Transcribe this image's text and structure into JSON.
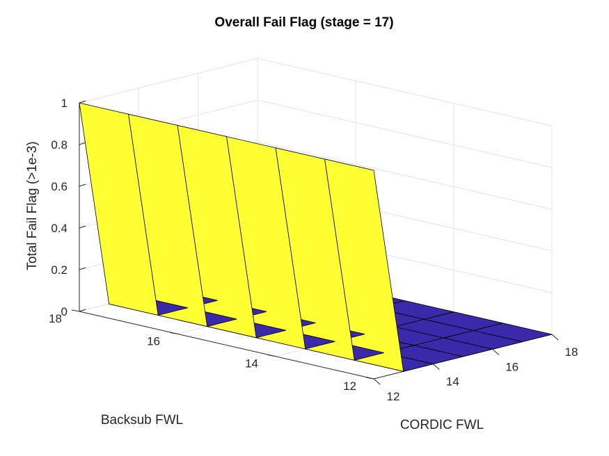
{
  "chart_data": {
    "type": "surface",
    "title": "Overall Fail Flag (stage = 17)",
    "xlabel": "CORDIC FWL",
    "ylabel": "Backsub FWL",
    "zlabel": "Total Fail Flag (>1e-3)",
    "x": [
      12,
      13,
      14,
      15,
      16,
      17,
      18
    ],
    "y": [
      12,
      13,
      14,
      15,
      16,
      17,
      18
    ],
    "xlim": [
      12,
      18
    ],
    "ylim": [
      12,
      18
    ],
    "zlim": [
      0,
      1
    ],
    "x_ticks": [
      12,
      14,
      16,
      18
    ],
    "y_ticks": [
      12,
      14,
      16,
      18
    ],
    "z_ticks": [
      0,
      0.2,
      0.4,
      0.6,
      0.8,
      1
    ],
    "z_by_x": [
      1,
      0,
      0,
      0,
      0,
      0,
      0
    ],
    "grid": true,
    "colors": {
      "high": "#ffff33",
      "low": "#3a29a8",
      "edge": "#000000",
      "grid": "#e3e3e3",
      "axis": "#262626"
    }
  }
}
